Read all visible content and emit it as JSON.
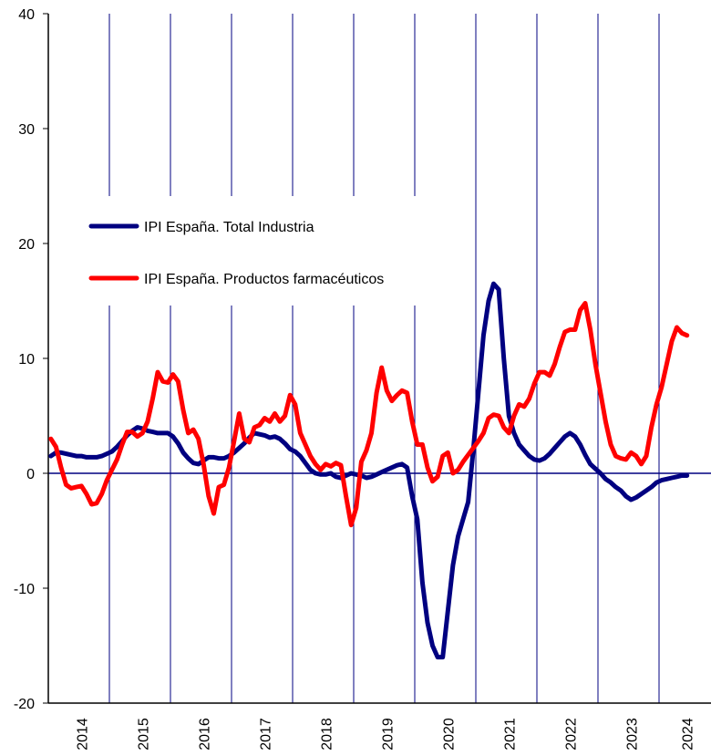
{
  "chart_data": {
    "type": "line",
    "categories": [
      null,
      null,
      null,
      null,
      null,
      null,
      "2014",
      null,
      null,
      null,
      null,
      null,
      null,
      null,
      null,
      null,
      null,
      null,
      "2015",
      null,
      null,
      null,
      null,
      null,
      null,
      null,
      null,
      null,
      null,
      null,
      "2016",
      null,
      null,
      null,
      null,
      null,
      null,
      null,
      null,
      null,
      null,
      null,
      "2017",
      null,
      null,
      null,
      null,
      null,
      null,
      null,
      null,
      null,
      null,
      null,
      "2018",
      null,
      null,
      null,
      null,
      null,
      null,
      null,
      null,
      null,
      null,
      null,
      "2019",
      null,
      null,
      null,
      null,
      null,
      null,
      null,
      null,
      null,
      null,
      null,
      "2020",
      null,
      null,
      null,
      null,
      null,
      null,
      null,
      null,
      null,
      null,
      null,
      "2021",
      null,
      null,
      null,
      null,
      null,
      null,
      null,
      null,
      null,
      null,
      null,
      "2022",
      null,
      null,
      null,
      null,
      null,
      null,
      null,
      null,
      null,
      null,
      null,
      "2023",
      null,
      null,
      null,
      null,
      null,
      null,
      null,
      null,
      null,
      null,
      "2024"
    ],
    "series": [
      {
        "name": "IPI España. Total Industria",
        "color": "#000080",
        "values": [
          1.5,
          1.8,
          1.8,
          1.7,
          1.6,
          1.5,
          1.5,
          1.4,
          1.4,
          1.4,
          1.5,
          1.7,
          1.9,
          2.3,
          2.8,
          3.3,
          3.7,
          4.0,
          3.9,
          3.7,
          3.6,
          3.5,
          3.5,
          3.5,
          3.2,
          2.6,
          1.8,
          1.3,
          0.9,
          0.8,
          1.1,
          1.4,
          1.4,
          1.3,
          1.3,
          1.5,
          1.8,
          2.2,
          2.6,
          3.1,
          3.5,
          3.4,
          3.3,
          3.1,
          3.2,
          3.0,
          2.6,
          2.1,
          1.9,
          1.5,
          0.9,
          0.3,
          0.0,
          -0.1,
          -0.1,
          0.0,
          -0.3,
          -0.4,
          -0.2,
          0.0,
          -0.1,
          -0.2,
          -0.4,
          -0.3,
          -0.1,
          0.1,
          0.3,
          0.5,
          0.7,
          0.8,
          0.5,
          -2.0,
          -4.0,
          -9.5,
          -13.0,
          -15.0,
          -16.0,
          -16.0,
          -12.0,
          -8.0,
          -5.5,
          -4.0,
          -2.5,
          2.0,
          7.0,
          12.0,
          15.0,
          16.5,
          16.0,
          10.0,
          5.0,
          3.5,
          2.5,
          2.0,
          1.5,
          1.2,
          1.1,
          1.3,
          1.7,
          2.2,
          2.7,
          3.2,
          3.5,
          3.2,
          2.5,
          1.6,
          0.8,
          0.4,
          0.0,
          -0.5,
          -0.8,
          -1.2,
          -1.5,
          -2.0,
          -2.3,
          -2.1,
          -1.8,
          -1.5,
          -1.2,
          -0.8,
          -0.6,
          -0.5,
          -0.4,
          -0.3,
          -0.2,
          -0.2
        ]
      },
      {
        "name": "IPI España. Productos farmacéuticos",
        "color": "#ff0000",
        "values": [
          3.0,
          2.3,
          0.5,
          -1.0,
          -1.3,
          -1.2,
          -1.1,
          -1.8,
          -2.7,
          -2.6,
          -1.8,
          -0.6,
          0.3,
          1.2,
          2.5,
          3.6,
          3.6,
          3.2,
          3.5,
          4.5,
          6.5,
          8.8,
          8.0,
          7.9,
          8.6,
          8.0,
          5.5,
          3.5,
          3.8,
          3.0,
          0.8,
          -2.0,
          -3.5,
          -1.2,
          -1.0,
          0.5,
          2.8,
          5.2,
          3.0,
          2.7,
          4.0,
          4.2,
          4.8,
          4.5,
          5.2,
          4.5,
          5.0,
          6.8,
          6.0,
          3.5,
          2.5,
          1.5,
          0.8,
          0.3,
          0.8,
          0.6,
          0.9,
          0.7,
          -2.0,
          -4.5,
          -3.0,
          1.0,
          2.0,
          3.5,
          7.0,
          9.2,
          7.2,
          6.3,
          6.8,
          7.2,
          7.0,
          4.5,
          2.5,
          2.5,
          0.5,
          -0.7,
          -0.3,
          1.5,
          1.8,
          0.0,
          0.3,
          1.0,
          1.6,
          2.2,
          2.8,
          3.5,
          4.8,
          5.1,
          5.0,
          4.0,
          3.5,
          5.0,
          6.0,
          5.8,
          6.5,
          7.8,
          8.8,
          8.8,
          8.5,
          9.5,
          11.0,
          12.3,
          12.5,
          12.5,
          14.2,
          14.8,
          12.5,
          9.5,
          7.0,
          4.5,
          2.5,
          1.5,
          1.3,
          1.2,
          1.8,
          1.5,
          0.8,
          1.5,
          4.0,
          6.0,
          7.5,
          9.5,
          11.5,
          12.7,
          12.2,
          12.0
        ]
      }
    ],
    "ylim": [
      -20,
      40
    ],
    "yticks": [
      -20,
      -10,
      0,
      10,
      20,
      30,
      40
    ],
    "legend": "upper left"
  }
}
